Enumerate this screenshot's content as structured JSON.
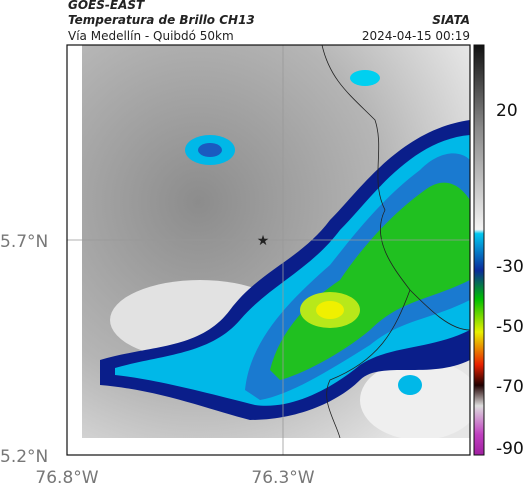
{
  "header": {
    "satellite": "GOES-EAST",
    "product": "Temperatura de Brillo CH13",
    "region": "Vía Medellín - Quibdó 50km",
    "source": "SIATA",
    "datetime": "2024-04-15 00:19"
  },
  "axes": {
    "latitude_ticks": [
      "5.7°N",
      "5.2°N"
    ],
    "longitude_ticks": [
      "76.8°W",
      "76.3°W"
    ]
  },
  "colorbar": {
    "ticks": [
      20,
      -30,
      -50,
      -70,
      -90
    ]
  }
}
